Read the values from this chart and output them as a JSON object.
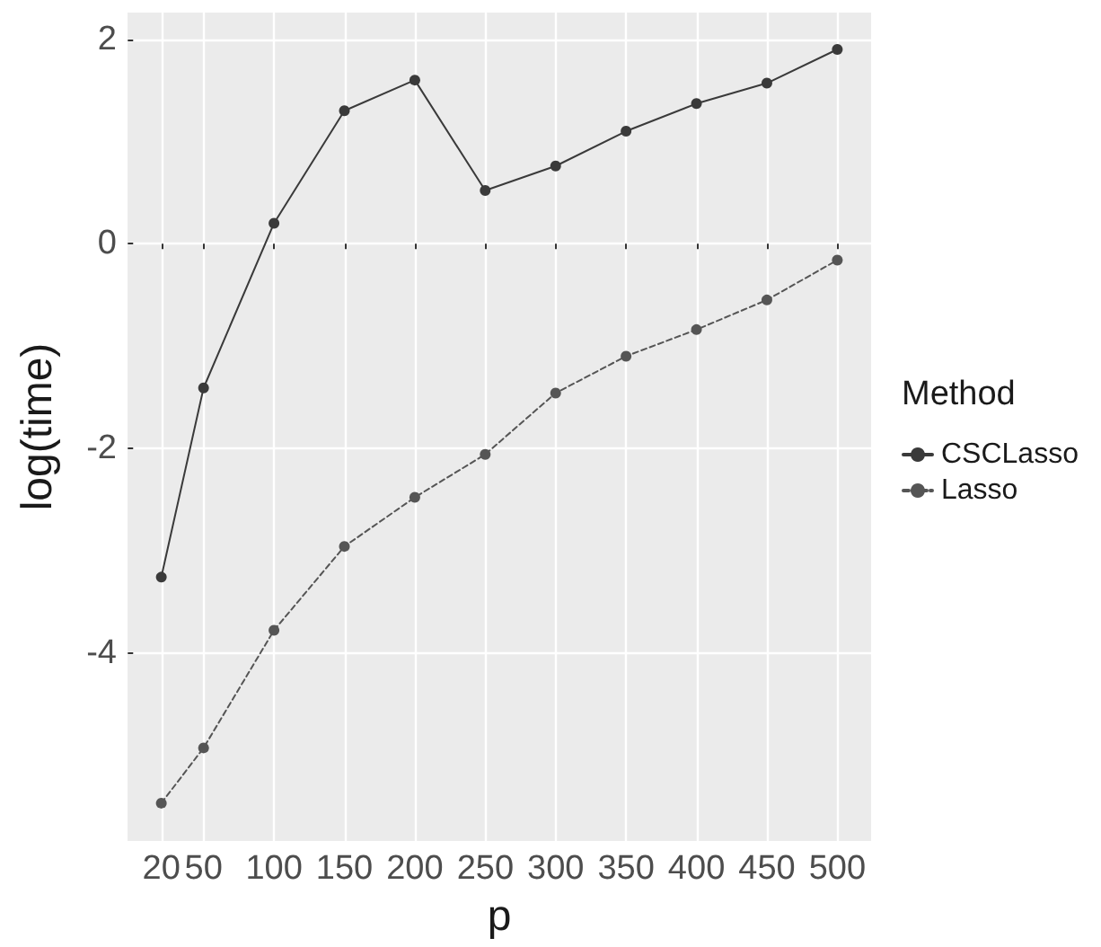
{
  "chart_data": {
    "type": "line",
    "xlabel": "p",
    "ylabel": "log(time)",
    "legend_title": "Method",
    "x": [
      20,
      50,
      100,
      150,
      200,
      250,
      300,
      350,
      400,
      450,
      500
    ],
    "xlim": [
      -4,
      524
    ],
    "xticks": [
      20,
      50,
      100,
      150,
      200,
      250,
      300,
      350,
      400,
      450,
      500
    ],
    "ylim": [
      -5.84,
      2.26
    ],
    "yticks": [
      -4,
      -2,
      0,
      2
    ],
    "series": [
      {
        "name": "CSCLasso",
        "color": "#3a3a3a",
        "line_style": "solid",
        "values": [
          -3.26,
          -1.41,
          0.2,
          1.3,
          1.6,
          0.52,
          0.76,
          1.1,
          1.37,
          1.57,
          1.9
        ]
      },
      {
        "name": "Lasso",
        "color": "#555555",
        "line_style": "dashed",
        "values": [
          -5.47,
          -4.93,
          -3.78,
          -2.96,
          -2.48,
          -2.06,
          -1.46,
          -1.1,
          -0.84,
          -0.55,
          -0.16
        ]
      }
    ],
    "marker": "circle",
    "grid": true,
    "legend": "right"
  }
}
